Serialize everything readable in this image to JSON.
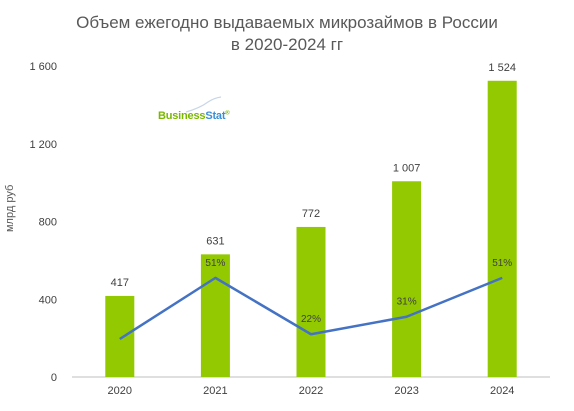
{
  "title_line1": "Объем ежегодно выдаваемых микрозаймов в России",
  "title_line2": "в 2020-2024 гг",
  "logo": {
    "part1": "Business",
    "part2": "Stat",
    "mark": "®"
  },
  "colors": {
    "bar": "#92c900",
    "line": "#4472c4",
    "axis": "#bfbfbf",
    "text": "#404040"
  },
  "chart_data": {
    "type": "bar",
    "title": "Объем ежегодно выдаваемых микрозаймов в России в 2020-2024 гг",
    "categories": [
      "2020",
      "2021",
      "2022",
      "2023",
      "2024"
    ],
    "values": [
      417,
      631,
      772,
      1007,
      1524
    ],
    "value_labels": [
      "417",
      "631",
      "772",
      "1 007",
      "1 524"
    ],
    "growth": [
      null,
      51,
      22,
      31,
      51
    ],
    "growth_labels": [
      "",
      "51%",
      "22%",
      "31%",
      "51%"
    ],
    "ylabel": "млрд руб",
    "xlabel": "",
    "ylim": [
      0,
      1600
    ],
    "yticks": [
      0,
      400,
      800,
      1200,
      1600
    ],
    "ytick_labels": [
      "0",
      "400",
      "800",
      "1 200",
      "1 600"
    ],
    "growth_scale": [
      0,
      160
    ],
    "legend": "none",
    "grid": false
  }
}
